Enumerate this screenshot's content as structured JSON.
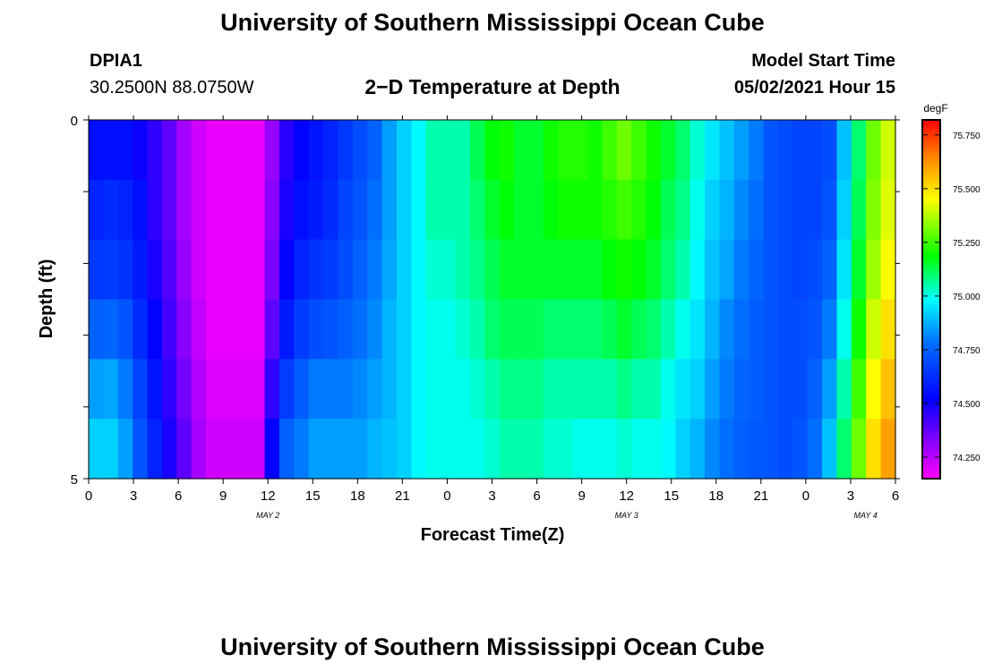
{
  "header": {
    "title_top": "University of Southern Mississippi Ocean Cube",
    "station": "DPIA1",
    "location": "30.2500N  88.0750W",
    "subtitle": "2−D Temperature at Depth",
    "model_start_label": "Model Start Time",
    "model_start_value": "05/02/2021 Hour 15"
  },
  "footer": {
    "title_bottom": "University of Southern Mississippi Ocean Cube"
  },
  "chart_data": {
    "type": "heatmap",
    "title": "2−D Temperature at Depth",
    "xlabel": "Forecast Time(Z)",
    "ylabel": "Depth (ft)",
    "y_tick_labels": [
      "0",
      "5"
    ],
    "ylim": [
      0,
      5
    ],
    "x_tick_labels": [
      "0",
      "3",
      "6",
      "9",
      "12",
      "15",
      "18",
      "21",
      "0",
      "3",
      "6",
      "9",
      "12",
      "15",
      "18",
      "21",
      "0",
      "3",
      "6"
    ],
    "date_labels": [
      "MAY 2",
      "MAY 3",
      "MAY 4"
    ],
    "colorbar": {
      "unit": "degF",
      "tick_labels": [
        "75.750",
        "75.500",
        "75.250",
        "75.000",
        "74.750",
        "74.500",
        "74.250"
      ],
      "range": [
        74.15,
        75.82
      ]
    },
    "hours": [
      0,
      1,
      2,
      3,
      4,
      5,
      6,
      7,
      8,
      9,
      10,
      11,
      12,
      13,
      14,
      15,
      16,
      17,
      18,
      19,
      20,
      21,
      22,
      23,
      24,
      25,
      26,
      27,
      28,
      29,
      30,
      31,
      32,
      33,
      34,
      35,
      36,
      37,
      38,
      39,
      40,
      41,
      42,
      43,
      44,
      45,
      46,
      47,
      48,
      49,
      50,
      51,
      52,
      53,
      54
    ],
    "depths": [
      0,
      1,
      2,
      3,
      4,
      5
    ],
    "values": [
      [
        74.55,
        74.55,
        74.55,
        74.5,
        74.45,
        74.38,
        74.28,
        74.22,
        74.18,
        74.18,
        74.18,
        74.18,
        74.3,
        74.46,
        74.52,
        74.56,
        74.6,
        74.65,
        74.7,
        74.75,
        74.85,
        74.92,
        74.98,
        75.05,
        75.05,
        75.05,
        75.12,
        75.18,
        75.2,
        75.15,
        75.15,
        75.2,
        75.22,
        75.22,
        75.2,
        75.25,
        75.3,
        75.25,
        75.2,
        75.15,
        75.1,
        75.02,
        74.95,
        74.9,
        74.85,
        74.8,
        74.72,
        74.7,
        74.68,
        74.68,
        74.7,
        74.9,
        75.1,
        75.3,
        75.4
      ],
      [
        74.6,
        74.62,
        74.6,
        74.55,
        74.45,
        74.38,
        74.28,
        74.22,
        74.18,
        74.18,
        74.18,
        74.18,
        74.32,
        74.48,
        74.55,
        74.58,
        74.62,
        74.68,
        74.72,
        74.78,
        74.85,
        74.92,
        74.98,
        75.05,
        75.05,
        75.05,
        75.1,
        75.15,
        75.18,
        75.15,
        75.15,
        75.18,
        75.2,
        75.2,
        75.2,
        75.22,
        75.25,
        75.22,
        75.18,
        75.12,
        75.08,
        75.0,
        74.92,
        74.88,
        74.82,
        74.78,
        74.72,
        74.7,
        74.68,
        74.68,
        74.72,
        74.92,
        75.12,
        75.32,
        75.42
      ],
      [
        74.65,
        74.66,
        74.64,
        74.58,
        74.48,
        74.4,
        74.3,
        74.22,
        74.18,
        74.18,
        74.18,
        74.18,
        74.34,
        74.52,
        74.6,
        74.64,
        74.66,
        74.7,
        74.75,
        74.8,
        74.86,
        74.92,
        74.98,
        75.02,
        75.02,
        75.05,
        75.08,
        75.12,
        75.15,
        75.15,
        75.15,
        75.15,
        75.15,
        75.15,
        75.15,
        75.18,
        75.2,
        75.18,
        75.15,
        75.1,
        75.05,
        74.98,
        74.9,
        74.86,
        74.8,
        74.76,
        74.72,
        74.7,
        74.68,
        74.7,
        74.75,
        74.95,
        75.15,
        75.35,
        75.45
      ],
      [
        74.75,
        74.76,
        74.72,
        74.62,
        74.52,
        74.42,
        74.32,
        74.24,
        74.18,
        74.18,
        74.18,
        74.18,
        74.38,
        74.58,
        74.66,
        74.7,
        74.72,
        74.75,
        74.78,
        74.82,
        74.88,
        74.92,
        74.98,
        75.0,
        75.0,
        75.02,
        75.05,
        75.1,
        75.12,
        75.12,
        75.12,
        75.1,
        75.1,
        75.1,
        75.1,
        75.12,
        75.15,
        75.12,
        75.1,
        75.05,
        75.0,
        74.95,
        74.88,
        74.82,
        74.78,
        74.74,
        74.72,
        74.7,
        74.7,
        74.72,
        74.8,
        75.0,
        75.2,
        75.4,
        75.5
      ],
      [
        74.85,
        74.86,
        74.8,
        74.68,
        74.56,
        74.45,
        74.35,
        74.26,
        74.2,
        74.2,
        74.2,
        74.2,
        74.45,
        74.66,
        74.74,
        74.8,
        74.8,
        74.8,
        74.82,
        74.85,
        74.88,
        74.92,
        74.98,
        75.0,
        75.0,
        75.0,
        75.02,
        75.05,
        75.08,
        75.08,
        75.08,
        75.05,
        75.05,
        75.05,
        75.05,
        75.05,
        75.08,
        75.05,
        75.05,
        75.0,
        74.95,
        74.92,
        74.85,
        74.8,
        74.76,
        74.74,
        74.72,
        74.7,
        74.7,
        74.75,
        74.85,
        75.05,
        75.25,
        75.45,
        75.55
      ],
      [
        74.92,
        74.92,
        74.85,
        74.72,
        74.6,
        74.48,
        74.38,
        74.28,
        74.22,
        74.22,
        74.22,
        74.22,
        74.52,
        74.75,
        74.8,
        74.85,
        74.85,
        74.85,
        74.85,
        74.88,
        74.9,
        74.92,
        74.98,
        75.0,
        75.0,
        75.0,
        75.0,
        75.02,
        75.05,
        75.05,
        75.05,
        75.02,
        75.02,
        75.0,
        75.0,
        75.0,
        75.02,
        75.0,
        75.0,
        74.98,
        74.92,
        74.88,
        74.82,
        74.78,
        74.75,
        74.73,
        74.72,
        74.7,
        74.72,
        74.78,
        74.9,
        75.1,
        75.3,
        75.5,
        75.6
      ]
    ]
  }
}
